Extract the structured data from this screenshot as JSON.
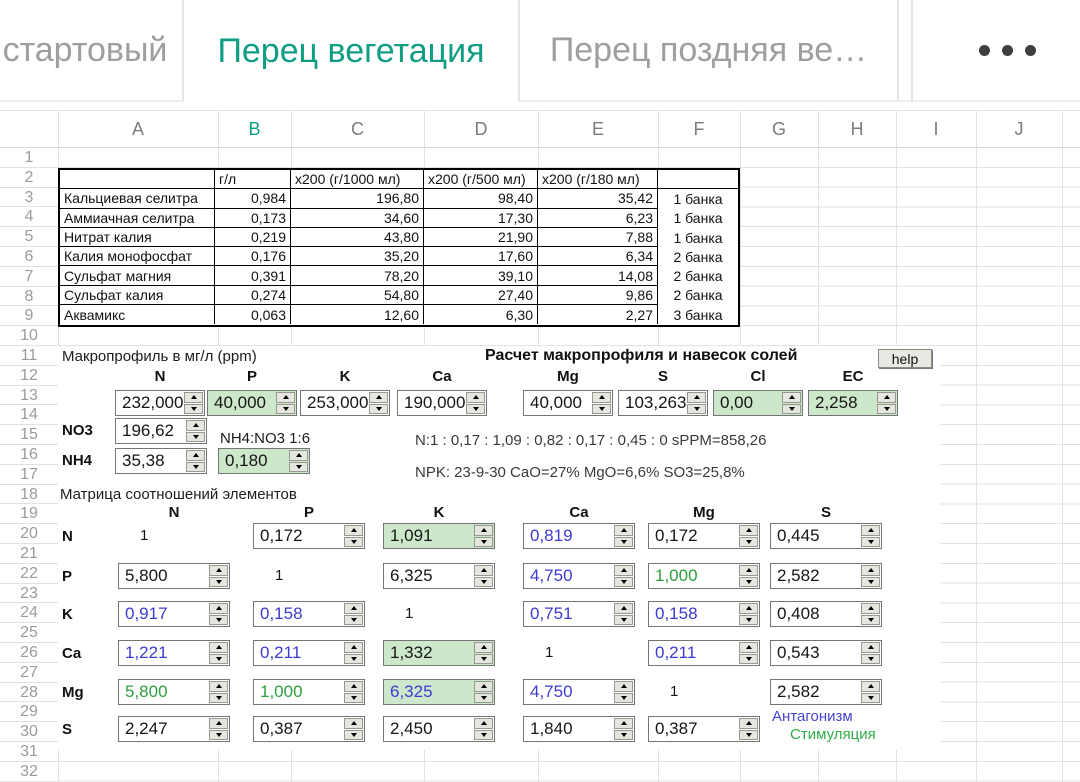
{
  "sheet_tabs": {
    "tabs": [
      {
        "label": "стартовый",
        "active": false
      },
      {
        "label": "Перец вегетация",
        "active": true
      },
      {
        "label": "Перец поздняя ве…",
        "active": false
      }
    ]
  },
  "grid": {
    "columns": [
      "A",
      "B",
      "C",
      "D",
      "E",
      "F",
      "G",
      "H",
      "I",
      "J"
    ],
    "selected_column": "B",
    "rows": [
      "1",
      "2",
      "3",
      "4",
      "5",
      "6",
      "7",
      "8",
      "9",
      "10",
      "11",
      "12",
      "13",
      "14",
      "15",
      "16",
      "17",
      "18",
      "19",
      "20",
      "21",
      "22",
      "23",
      "24",
      "25",
      "26",
      "27",
      "28",
      "29",
      "30",
      "31",
      "32"
    ]
  },
  "salt_table": {
    "col_headers": [
      "",
      "г/л",
      "x200 (г/1000 мл)",
      "x200 (г/500 мл)",
      "x200 (г/180 мл)",
      ""
    ],
    "rows": [
      {
        "name": "Кальциевая селитра",
        "g_per_l": "0,984",
        "x200_1000": "196,80",
        "x200_500": "98,40",
        "x200_180": "35,42",
        "jars": "1 банка"
      },
      {
        "name": "Аммиачная селитра",
        "g_per_l": "0,173",
        "x200_1000": "34,60",
        "x200_500": "17,30",
        "x200_180": "6,23",
        "jars": "1 банка"
      },
      {
        "name": "Нитрат калия",
        "g_per_l": "0,219",
        "x200_1000": "43,80",
        "x200_500": "21,90",
        "x200_180": "7,88",
        "jars": "1 банка"
      },
      {
        "name": "Калия монофосфат",
        "g_per_l": "0,176",
        "x200_1000": "35,20",
        "x200_500": "17,60",
        "x200_180": "6,34",
        "jars": "2 банка"
      },
      {
        "name": "Сульфат магния",
        "g_per_l": "0,391",
        "x200_1000": "78,20",
        "x200_500": "39,10",
        "x200_180": "14,08",
        "jars": "2 банка"
      },
      {
        "name": "Сульфат калия",
        "g_per_l": "0,274",
        "x200_1000": "54,80",
        "x200_500": "27,40",
        "x200_180": "9,86",
        "jars": "2 банка"
      },
      {
        "name": "Аквамикс",
        "g_per_l": "0,063",
        "x200_1000": "12,60",
        "x200_500": "6,30",
        "x200_180": "2,27",
        "jars": "3 банка"
      }
    ]
  },
  "profile": {
    "title": "Макропрофиль в мг/л (ppm)",
    "calc_title": "Расчет макропрофиля и навесок солей",
    "help_label": "help",
    "fields": [
      {
        "label": "N",
        "value": "232,000",
        "highlight": false
      },
      {
        "label": "P",
        "value": "40,000",
        "highlight": true
      },
      {
        "label": "K",
        "value": "253,000",
        "highlight": false
      },
      {
        "label": "Ca",
        "value": "190,000",
        "highlight": false
      },
      {
        "label": "Mg",
        "value": "40,000",
        "highlight": false
      },
      {
        "label": "S",
        "value": "103,263",
        "highlight": false
      },
      {
        "label": "Cl",
        "value": "0,00",
        "highlight": true
      },
      {
        "label": "EC",
        "value": "2,258",
        "highlight": true
      }
    ],
    "no3_label": "NO3",
    "no3_value": "196,62",
    "nh4_label": "NH4",
    "nh4_value": "35,38",
    "nh4_no3_label": "NH4:NO3 1:6",
    "nh4_no3_value": "0,180",
    "ratio_line": "N:1 : 0,17 : 1,09 : 0,82 : 0,17 : 0,45 : 0 sPPM=858,26",
    "npk_line": "NPK: 23-9-30 CaO=27% MgO=6,6% SO3=25,8%"
  },
  "matrix": {
    "title": "Матрица соотношений элементов",
    "columns": [
      "N",
      "P",
      "K",
      "Ca",
      "Mg",
      "S"
    ],
    "rows": [
      {
        "label": "N",
        "cells": [
          {
            "text": "1"
          },
          {
            "value": "0,172"
          },
          {
            "value": "1,091",
            "bg": "green"
          },
          {
            "value": "0,819",
            "color": "blue"
          },
          {
            "value": "0,172"
          },
          {
            "value": "0,445"
          }
        ]
      },
      {
        "label": "P",
        "cells": [
          {
            "value": "5,800"
          },
          {
            "text": "1"
          },
          {
            "value": "6,325"
          },
          {
            "value": "4,750",
            "color": "blue"
          },
          {
            "value": "1,000",
            "color": "green"
          },
          {
            "value": "2,582"
          }
        ]
      },
      {
        "label": "K",
        "cells": [
          {
            "value": "0,917",
            "color": "blue"
          },
          {
            "value": "0,158",
            "color": "blue"
          },
          {
            "text": "1"
          },
          {
            "value": "0,751",
            "color": "blue"
          },
          {
            "value": "0,158",
            "color": "blue"
          },
          {
            "value": "0,408"
          }
        ]
      },
      {
        "label": "Ca",
        "cells": [
          {
            "value": "1,221",
            "color": "blue"
          },
          {
            "value": "0,211",
            "color": "blue"
          },
          {
            "value": "1,332",
            "bg": "green"
          },
          {
            "text": "1"
          },
          {
            "value": "0,211",
            "color": "blue"
          },
          {
            "value": "0,543"
          }
        ]
      },
      {
        "label": "Mg",
        "cells": [
          {
            "value": "5,800",
            "color": "green"
          },
          {
            "value": "1,000",
            "color": "green"
          },
          {
            "value": "6,325",
            "bg": "green",
            "color": "blue"
          },
          {
            "value": "4,750",
            "color": "blue"
          },
          {
            "text": "1"
          },
          {
            "value": "2,582"
          }
        ]
      },
      {
        "label": "S",
        "cells": [
          {
            "value": "2,247"
          },
          {
            "value": "0,387"
          },
          {
            "value": "2,450"
          },
          {
            "value": "1,840"
          },
          {
            "value": "0,387"
          },
          {
            "legend": true
          }
        ]
      }
    ],
    "legend": {
      "antagonism": "Антагонизм",
      "stimulation": "Стимуляция"
    }
  },
  "colors": {
    "active_tab": "#0f9d84",
    "inactive_tab": "#9e9e9e",
    "input_highlight_bg": "#cde7ca",
    "value_blue": "#3b3bd4",
    "value_green": "#2f9e3f",
    "legend_blue": "#4444d4",
    "legend_green": "#2fae47"
  }
}
